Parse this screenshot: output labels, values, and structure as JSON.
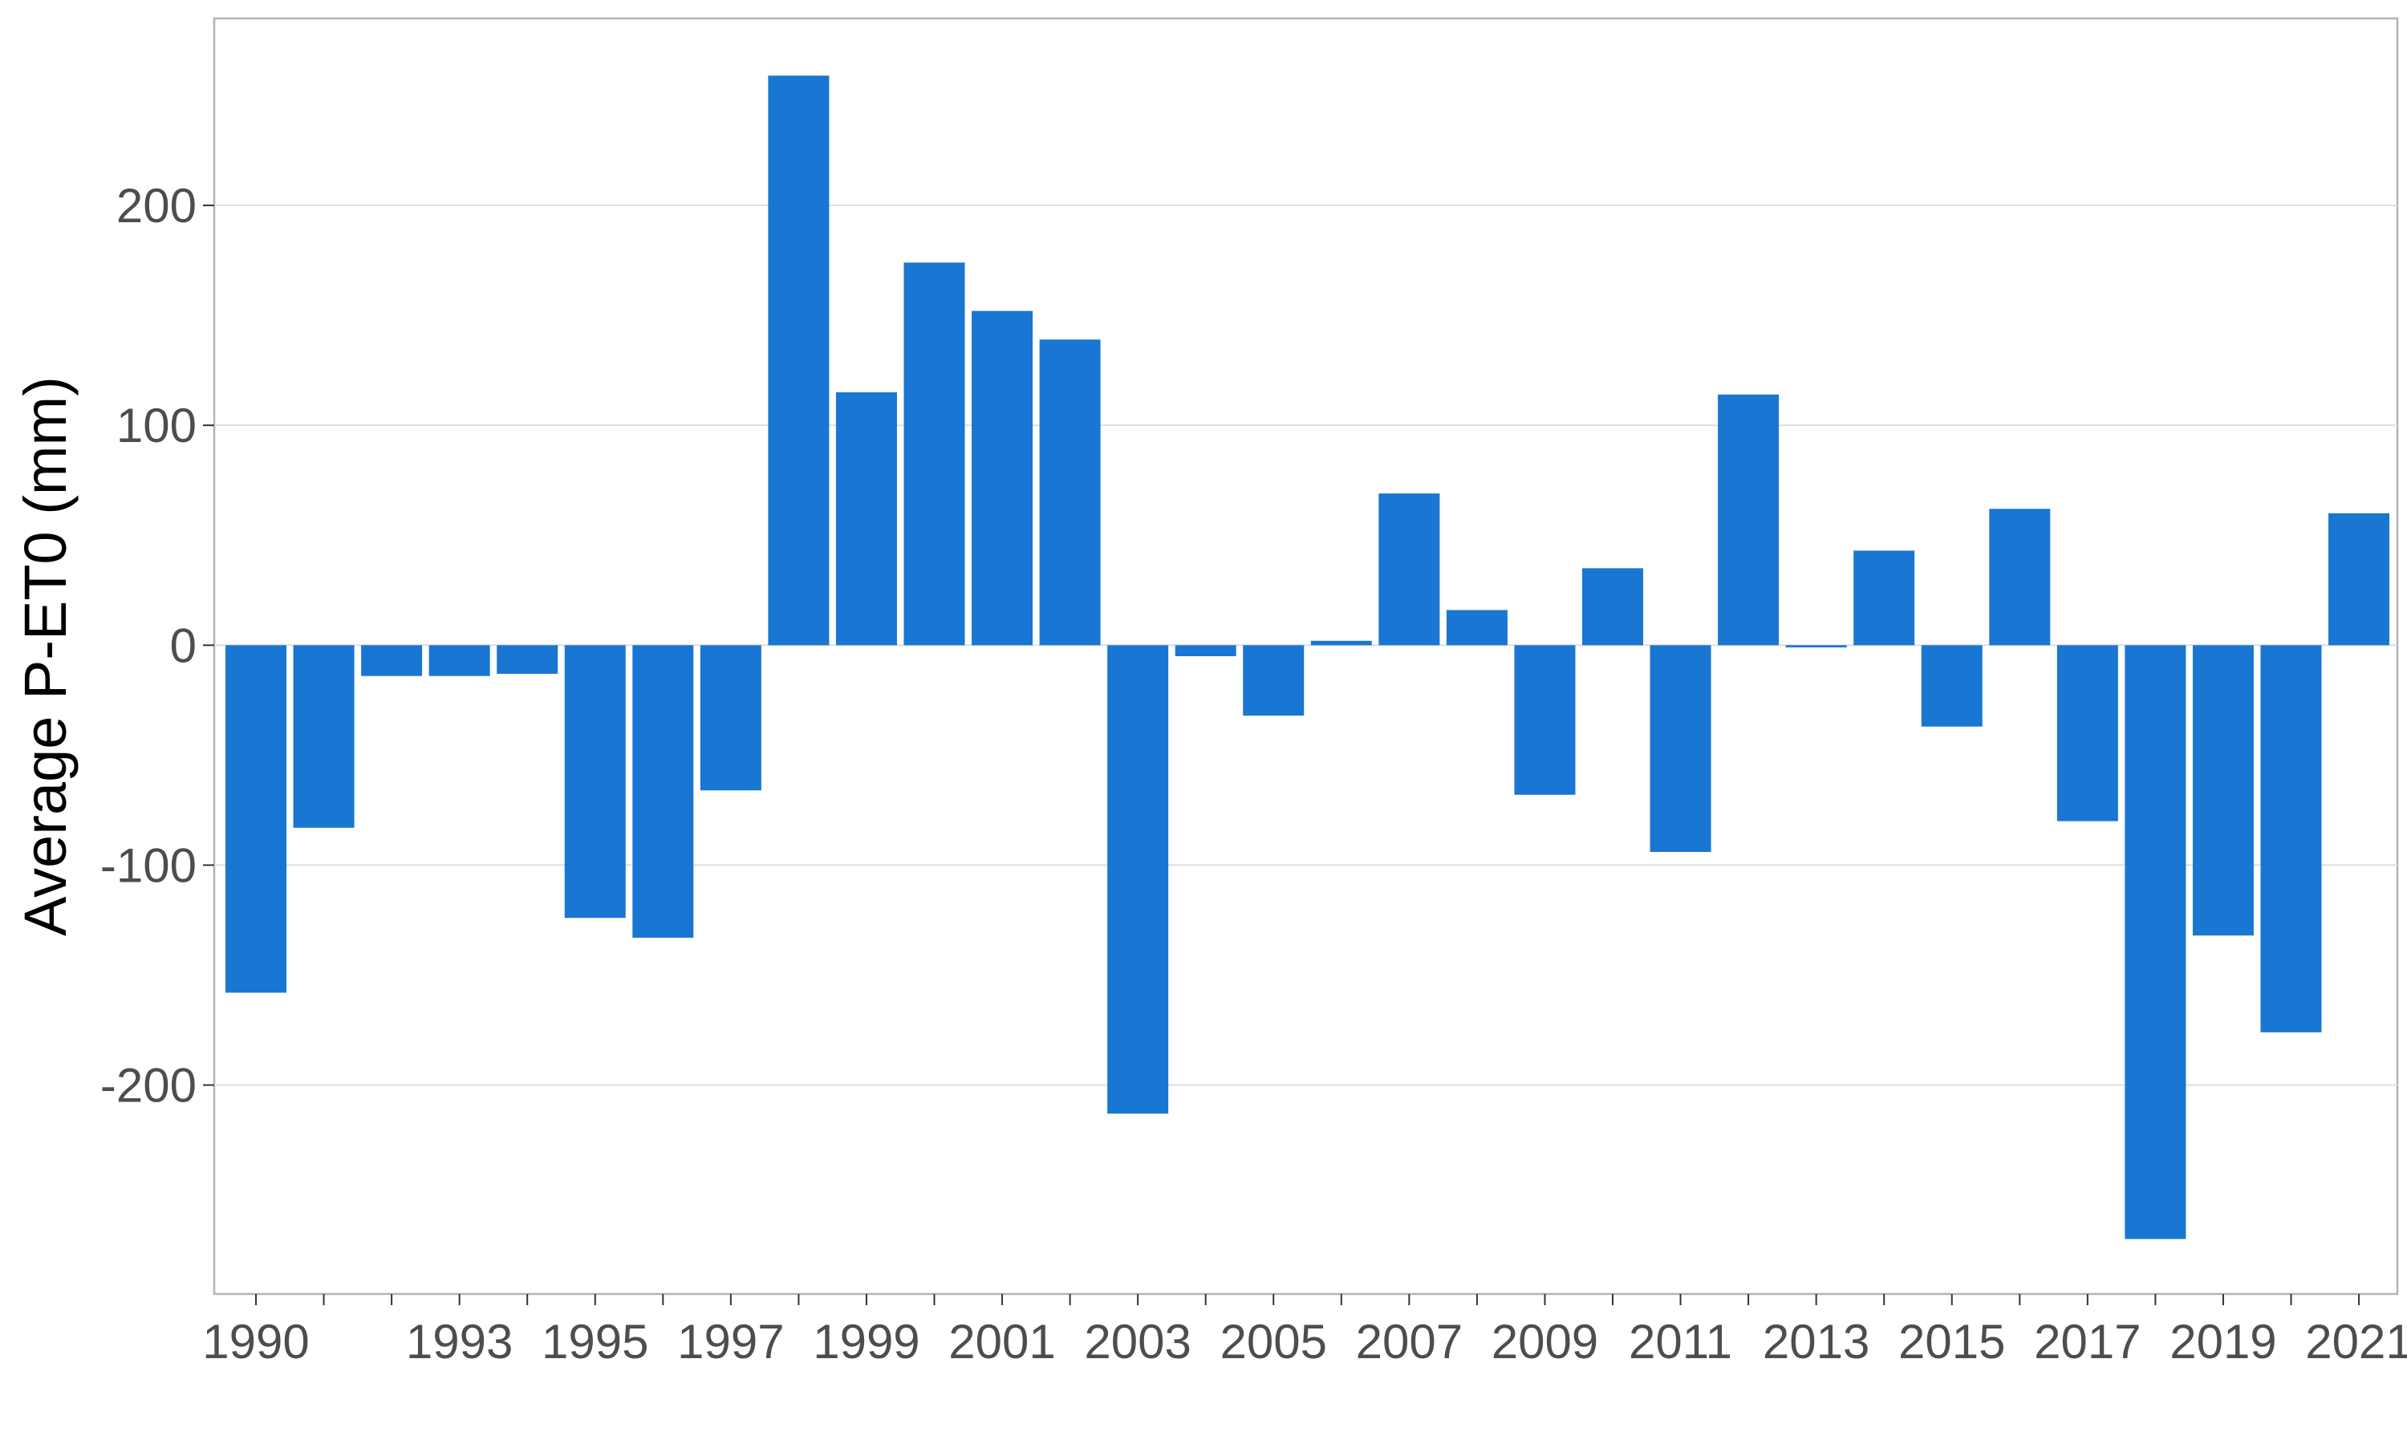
{
  "chart_data": {
    "type": "bar",
    "title": "",
    "xlabel": "",
    "ylabel": "Average P-ET0 (mm)",
    "ylim": [
      -295,
      285
    ],
    "yticks": [
      -200,
      -100,
      0,
      100,
      200
    ],
    "ytick_labels": [
      "-200",
      "-100",
      "0",
      "100",
      "200"
    ],
    "xtick_labels": [
      "1990",
      "1993",
      "1995",
      "1997",
      "1999",
      "2001",
      "2003",
      "2005",
      "2007",
      "2009",
      "2011",
      "2013",
      "2015",
      "2017",
      "2019",
      "2021"
    ],
    "grid": true,
    "legend": "none",
    "bar_color": "#1976D2",
    "categories": [
      1990,
      1991,
      1992,
      1993,
      1994,
      1995,
      1996,
      1997,
      1998,
      1999,
      2000,
      2001,
      2002,
      2003,
      2004,
      2005,
      2006,
      2007,
      2008,
      2009,
      2010,
      2011,
      2012,
      2013,
      2014,
      2015,
      2016,
      2017,
      2018,
      2019,
      2020,
      2021
    ],
    "values": [
      -158,
      -83,
      -14,
      -14,
      -13,
      -124,
      -133,
      -66,
      259,
      115,
      174,
      152,
      139,
      -213,
      -5,
      -32,
      2,
      69,
      16,
      -68,
      35,
      -94,
      114,
      -1,
      43,
      -37,
      62,
      -80,
      -270,
      -132,
      -176,
      60
    ]
  }
}
